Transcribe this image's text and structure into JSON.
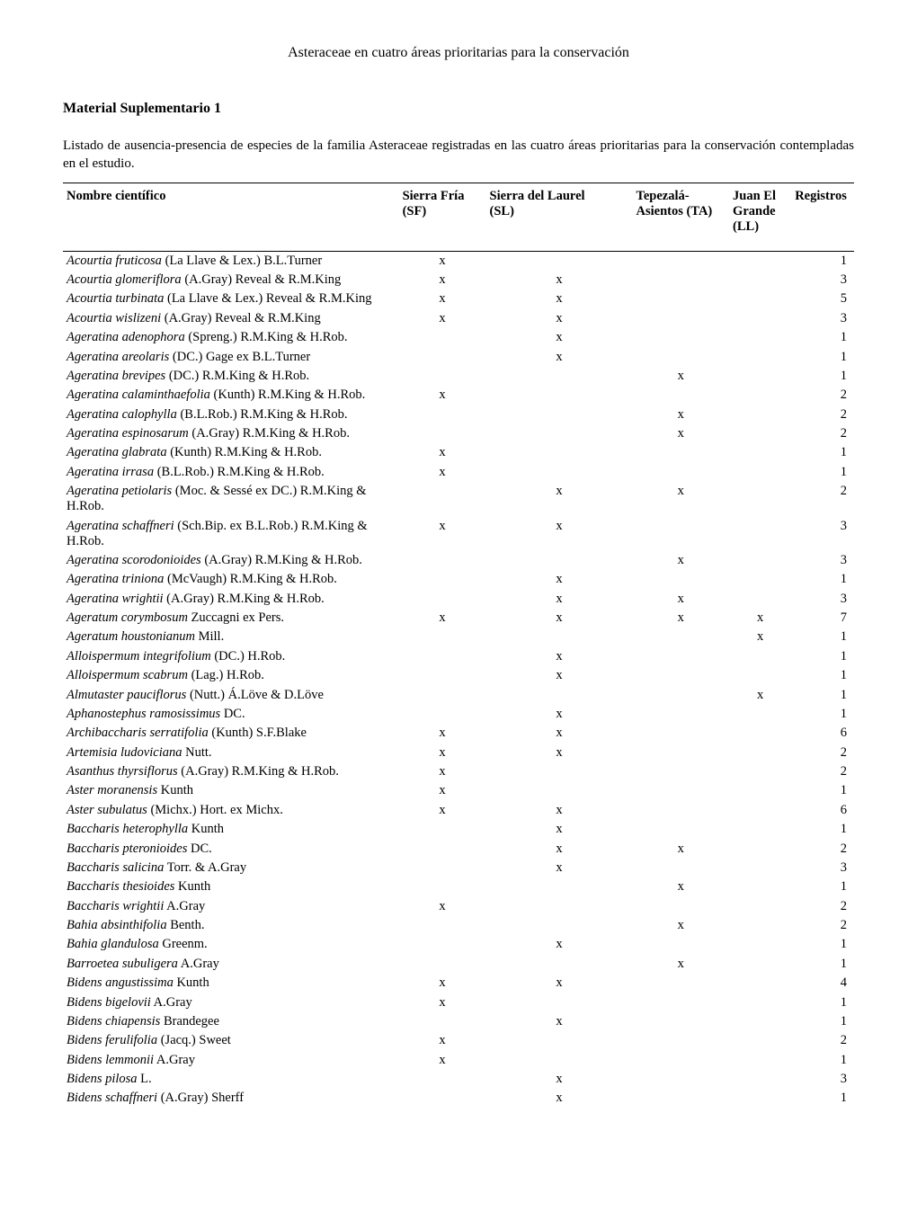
{
  "running_head": "Asteraceae en cuatro áreas prioritarias para la conservación",
  "section_title": "Material Suplementario 1",
  "caption": "Listado de ausencia-presencia de especies de la familia Asteraceae registradas en las cuatro áreas prioritarias para la conservación contempladas en el estudio.",
  "headers": {
    "name": "Nombre científico",
    "sf_line1": "Sierra Fría",
    "sf_line2": "(SF)",
    "sl_line1": "Sierra del Laurel",
    "sl_line2": "(SL)",
    "ta_line1": "Tepezalá-",
    "ta_line2": "Asientos (TA)",
    "ll_line1": "Juan El",
    "ll_line2": "Grande",
    "ll_line3": "(LL)",
    "reg": "Registros"
  },
  "mark_char": "x",
  "rows": [
    {
      "name_it": "Acourtia fruticosa",
      "name_rest": " (La Llave & Lex.) B.L.Turner",
      "sf": true,
      "sl": false,
      "ta": false,
      "ll": false,
      "reg": 1
    },
    {
      "name_it": "Acourtia glomeriflora",
      "name_rest": " (A.Gray) Reveal & R.M.King",
      "sf": true,
      "sl": true,
      "ta": false,
      "ll": false,
      "reg": 3
    },
    {
      "name_it": "Acourtia turbinata",
      "name_rest": " (La Llave & Lex.) Reveal & R.M.King",
      "sf": true,
      "sl": true,
      "ta": false,
      "ll": false,
      "reg": 5
    },
    {
      "name_it": "Acourtia wislizeni",
      "name_rest": " (A.Gray) Reveal & R.M.King",
      "sf": true,
      "sl": true,
      "ta": false,
      "ll": false,
      "reg": 3
    },
    {
      "name_it": "Ageratina adenophora",
      "name_rest": " (Spreng.) R.M.King & H.Rob.",
      "sf": false,
      "sl": true,
      "ta": false,
      "ll": false,
      "reg": 1
    },
    {
      "name_it": "Ageratina areolaris",
      "name_rest": " (DC.) Gage ex B.L.Turner",
      "sf": false,
      "sl": true,
      "ta": false,
      "ll": false,
      "reg": 1
    },
    {
      "name_it": "Ageratina brevipes",
      "name_rest": " (DC.) R.M.King & H.Rob.",
      "sf": false,
      "sl": false,
      "ta": true,
      "ll": false,
      "reg": 1
    },
    {
      "name_it": "Ageratina calaminthaefolia",
      "name_rest": " (Kunth) R.M.King & H.Rob.",
      "sf": true,
      "sl": false,
      "ta": false,
      "ll": false,
      "reg": 2
    },
    {
      "name_it": "Ageratina calophylla",
      "name_rest": " (B.L.Rob.) R.M.King & H.Rob.",
      "sf": false,
      "sl": false,
      "ta": true,
      "ll": false,
      "reg": 2
    },
    {
      "name_it": "Ageratina espinosarum",
      "name_rest": " (A.Gray) R.M.King & H.Rob.",
      "sf": false,
      "sl": false,
      "ta": true,
      "ll": false,
      "reg": 2
    },
    {
      "name_it": "Ageratina glabrata",
      "name_rest": " (Kunth) R.M.King & H.Rob.",
      "sf": true,
      "sl": false,
      "ta": false,
      "ll": false,
      "reg": 1
    },
    {
      "name_it": "Ageratina irrasa",
      "name_rest": " (B.L.Rob.) R.M.King & H.Rob.",
      "sf": true,
      "sl": false,
      "ta": false,
      "ll": false,
      "reg": 1
    },
    {
      "name_it": "Ageratina petiolaris",
      "name_rest": " (Moc. & Sessé ex DC.) R.M.King & H.Rob.",
      "sf": false,
      "sl": true,
      "ta": true,
      "ll": false,
      "reg": 2
    },
    {
      "name_it": "Ageratina schaffneri",
      "name_rest": " (Sch.Bip. ex B.L.Rob.) R.M.King & H.Rob.",
      "sf": true,
      "sl": true,
      "ta": false,
      "ll": false,
      "reg": 3
    },
    {
      "name_it": "Ageratina scorodonioides",
      "name_rest": " (A.Gray) R.M.King & H.Rob.",
      "sf": false,
      "sl": false,
      "ta": true,
      "ll": false,
      "reg": 3
    },
    {
      "name_it": "Ageratina triniona",
      "name_rest": " (McVaugh) R.M.King & H.Rob.",
      "sf": false,
      "sl": true,
      "ta": false,
      "ll": false,
      "reg": 1
    },
    {
      "name_it": "Ageratina wrightii",
      "name_rest": " (A.Gray) R.M.King & H.Rob.",
      "sf": false,
      "sl": true,
      "ta": true,
      "ll": false,
      "reg": 3
    },
    {
      "name_it": "Ageratum corymbosum",
      "name_rest": " Zuccagni ex Pers.",
      "sf": true,
      "sl": true,
      "ta": true,
      "ll": true,
      "reg": 7
    },
    {
      "name_it": "Ageratum houstonianum",
      "name_rest": " Mill.",
      "sf": false,
      "sl": false,
      "ta": false,
      "ll": true,
      "reg": 1
    },
    {
      "name_it": "Alloispermum integrifolium",
      "name_rest": " (DC.) H.Rob.",
      "sf": false,
      "sl": true,
      "ta": false,
      "ll": false,
      "reg": 1
    },
    {
      "name_it": "Alloispermum scabrum",
      "name_rest": " (Lag.) H.Rob.",
      "sf": false,
      "sl": true,
      "ta": false,
      "ll": false,
      "reg": 1
    },
    {
      "name_it": "Almutaster pauciflorus",
      "name_rest": " (Nutt.) Á.Löve & D.Löve",
      "sf": false,
      "sl": false,
      "ta": false,
      "ll": true,
      "reg": 1
    },
    {
      "name_it": "Aphanostephus ramosissimus",
      "name_rest": " DC.",
      "sf": false,
      "sl": true,
      "ta": false,
      "ll": false,
      "reg": 1
    },
    {
      "name_it": "Archibaccharis serratifolia",
      "name_rest": " (Kunth) S.F.Blake",
      "sf": true,
      "sl": true,
      "ta": false,
      "ll": false,
      "reg": 6
    },
    {
      "name_it": "Artemisia ludoviciana",
      "name_rest": " Nutt.",
      "sf": true,
      "sl": true,
      "ta": false,
      "ll": false,
      "reg": 2
    },
    {
      "name_it": "Asanthus thyrsiflorus",
      "name_rest": " (A.Gray) R.M.King & H.Rob.",
      "sf": true,
      "sl": false,
      "ta": false,
      "ll": false,
      "reg": 2
    },
    {
      "name_it": "Aster moranensis",
      "name_rest": " Kunth",
      "sf": true,
      "sl": false,
      "ta": false,
      "ll": false,
      "reg": 1
    },
    {
      "name_it": "Aster subulatus",
      "name_rest": " (Michx.) Hort. ex Michx.",
      "sf": true,
      "sl": true,
      "ta": false,
      "ll": false,
      "reg": 6
    },
    {
      "name_it": "Baccharis heterophylla",
      "name_rest": " Kunth",
      "sf": false,
      "sl": true,
      "ta": false,
      "ll": false,
      "reg": 1
    },
    {
      "name_it": "Baccharis pteronioides",
      "name_rest": " DC.",
      "sf": false,
      "sl": true,
      "ta": true,
      "ll": false,
      "reg": 2
    },
    {
      "name_it": "Baccharis salicina",
      "name_rest": " Torr. & A.Gray",
      "sf": false,
      "sl": true,
      "ta": false,
      "ll": false,
      "reg": 3
    },
    {
      "name_it": "Baccharis thesioides",
      "name_rest": " Kunth",
      "sf": false,
      "sl": false,
      "ta": true,
      "ll": false,
      "reg": 1
    },
    {
      "name_it": "Baccharis wrightii",
      "name_rest": " A.Gray",
      "sf": true,
      "sl": false,
      "ta": false,
      "ll": false,
      "reg": 2
    },
    {
      "name_it": "Bahia absinthifolia",
      "name_rest": " Benth.",
      "sf": false,
      "sl": false,
      "ta": true,
      "ll": false,
      "reg": 2
    },
    {
      "name_it": "Bahia glandulosa",
      "name_rest": " Greenm.",
      "sf": false,
      "sl": true,
      "ta": false,
      "ll": false,
      "reg": 1
    },
    {
      "name_it": "Barroetea subuligera",
      "name_rest": " A.Gray",
      "sf": false,
      "sl": false,
      "ta": true,
      "ll": false,
      "reg": 1
    },
    {
      "name_it": "Bidens angustissima",
      "name_rest": " Kunth",
      "sf": true,
      "sl": true,
      "ta": false,
      "ll": false,
      "reg": 4
    },
    {
      "name_it": "Bidens bigelovii",
      "name_rest": " A.Gray",
      "sf": true,
      "sl": false,
      "ta": false,
      "ll": false,
      "reg": 1
    },
    {
      "name_it": "Bidens chiapensis",
      "name_rest": " Brandegee",
      "sf": false,
      "sl": true,
      "ta": false,
      "ll": false,
      "reg": 1
    },
    {
      "name_it": "Bidens ferulifolia",
      "name_rest": " (Jacq.) Sweet",
      "sf": true,
      "sl": false,
      "ta": false,
      "ll": false,
      "reg": 2
    },
    {
      "name_it": "Bidens lemmonii",
      "name_rest": " A.Gray",
      "sf": true,
      "sl": false,
      "ta": false,
      "ll": false,
      "reg": 1
    },
    {
      "name_it": "Bidens pilosa",
      "name_rest": " L.",
      "sf": false,
      "sl": true,
      "ta": false,
      "ll": false,
      "reg": 3
    },
    {
      "name_it": "Bidens schaffneri",
      "name_rest": " (A.Gray) Sherff",
      "sf": false,
      "sl": true,
      "ta": false,
      "ll": false,
      "reg": 1
    }
  ]
}
